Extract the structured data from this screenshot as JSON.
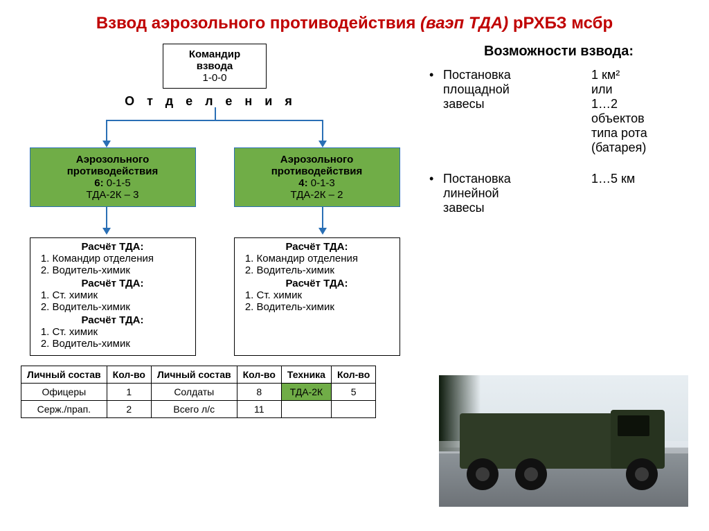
{
  "title": {
    "main": "Взвод аэрозольного противодействия ",
    "italic": "(ваэп ТДА) ",
    "tail": "рРХБЗ мсбр"
  },
  "commander": {
    "line1": "Командир",
    "line2": "взвода",
    "count": "1-0-0"
  },
  "section_label": "Отделения",
  "squads": [
    {
      "name": "Аэрозольного противодействия",
      "count_bold": "6:",
      "count_rest": " 0-1-5",
      "equip": "ТДА-2К – 3",
      "crews": [
        {
          "hdr": "Расчёт ТДА:",
          "items": [
            "Командир отделения",
            "Водитель-химик"
          ]
        },
        {
          "hdr": "Расчёт ТДА:",
          "items": [
            "Ст. химик",
            "Водитель-химик"
          ]
        },
        {
          "hdr": "Расчёт ТДА:",
          "items": [
            "Ст. химик",
            "Водитель-химик"
          ]
        }
      ]
    },
    {
      "name": "Аэрозольного противодействия",
      "count_bold": "4:",
      "count_rest": " 0-1-3",
      "equip": "ТДА-2К – 2",
      "crews": [
        {
          "hdr": "Расчёт ТДА:",
          "items": [
            "Командир отделения",
            "Водитель-химик"
          ]
        },
        {
          "hdr": "Расчёт ТДА:",
          "items": [
            "Ст. химик",
            "Водитель-химик"
          ]
        }
      ]
    }
  ],
  "table": {
    "headers": [
      "Личный состав",
      "Кол-во",
      "Личный состав",
      "Кол-во",
      "Техника",
      "Кол-во"
    ],
    "rows": [
      [
        "Офицеры",
        "1",
        "Солдаты",
        "8",
        "ТДА-2К",
        "5"
      ],
      [
        "Серж./прап.",
        "2",
        "Всего л/с",
        "11",
        "",
        ""
      ]
    ],
    "green_cells": [
      [
        0,
        4
      ]
    ]
  },
  "capabilities": {
    "title": "Возможности взвода:",
    "items": [
      {
        "left": [
          "Постановка",
          "площадной",
          "завесы"
        ],
        "right": [
          "1 км²",
          "или",
          "1…2",
          "объектов",
          "типа рота",
          "(батарея)"
        ]
      },
      {
        "left": [
          "Постановка",
          "линейной",
          "завесы"
        ],
        "right": [
          "1…5 км"
        ]
      }
    ]
  },
  "colors": {
    "title": "#c00000",
    "green": "#70ad47",
    "connector": "#2a6fb5",
    "border": "#000000"
  }
}
